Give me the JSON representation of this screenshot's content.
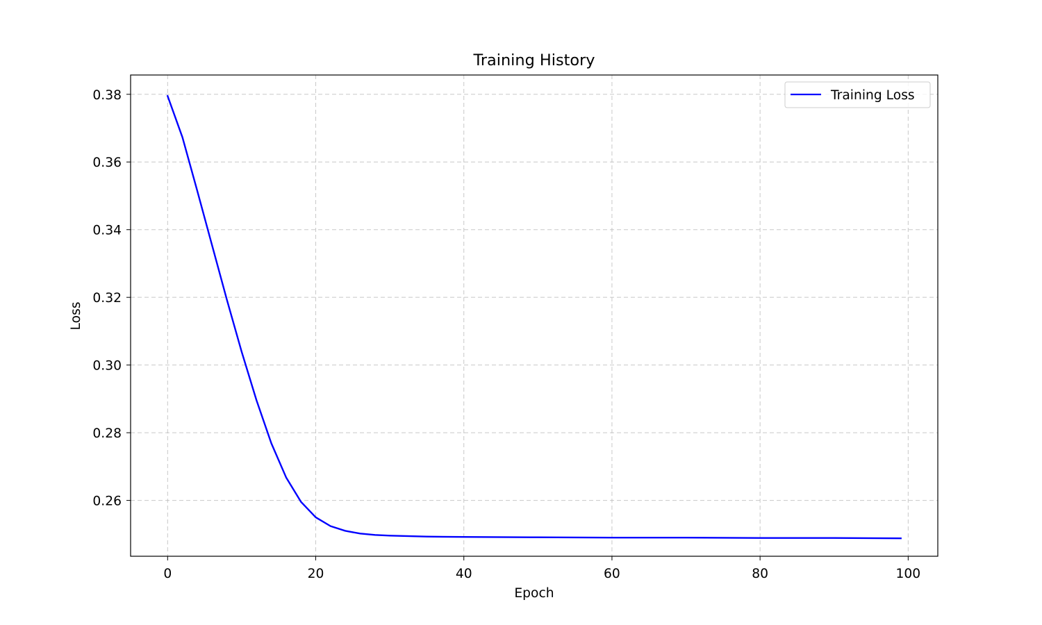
{
  "chart_data": {
    "type": "line",
    "title": "Training History",
    "xlabel": "Epoch",
    "ylabel": "Loss",
    "xlim": [
      -5,
      104
    ],
    "ylim": [
      0.2435,
      0.3857
    ],
    "xticks": [
      0,
      20,
      40,
      60,
      80,
      100
    ],
    "yticks": [
      0.26,
      0.28,
      0.3,
      0.32,
      0.34,
      0.36,
      0.38
    ],
    "xtick_labels": [
      "0",
      "20",
      "40",
      "60",
      "80",
      "100"
    ],
    "ytick_labels": [
      "0.26",
      "0.28",
      "0.30",
      "0.32",
      "0.34",
      "0.36",
      "0.38"
    ],
    "grid": true,
    "legend_position": "top-right",
    "series": [
      {
        "name": "Training Loss",
        "color": "#0000ff",
        "x": [
          0,
          2,
          4,
          6,
          8,
          10,
          12,
          14,
          16,
          18,
          20,
          22,
          24,
          26,
          28,
          30,
          35,
          40,
          50,
          60,
          70,
          80,
          90,
          99
        ],
        "y": [
          0.3795,
          0.3673,
          0.3515,
          0.3354,
          0.3193,
          0.3039,
          0.2896,
          0.2769,
          0.2668,
          0.2596,
          0.255,
          0.2524,
          0.251,
          0.2502,
          0.2498,
          0.2496,
          0.2493,
          0.2492,
          0.2491,
          0.249,
          0.249,
          0.2489,
          0.2489,
          0.2488
        ]
      }
    ]
  }
}
